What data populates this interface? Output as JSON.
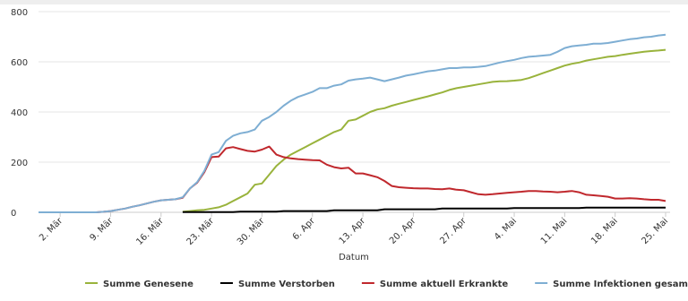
{
  "chart_data": {
    "type": "line",
    "x_label": "Datum",
    "categories": [
      null,
      null,
      null,
      "2. Mär",
      null,
      null,
      null,
      null,
      null,
      null,
      "9. Mär",
      null,
      null,
      null,
      null,
      null,
      null,
      "16. Mär",
      null,
      null,
      null,
      null,
      null,
      null,
      "23. Mär",
      null,
      null,
      null,
      null,
      null,
      null,
      "30. Mär",
      null,
      null,
      null,
      null,
      null,
      null,
      "6. Apr",
      null,
      null,
      null,
      null,
      null,
      null,
      "13. Apr",
      null,
      null,
      null,
      null,
      null,
      null,
      "20. Apr",
      null,
      null,
      null,
      null,
      null,
      null,
      "27. Apr",
      null,
      null,
      null,
      null,
      null,
      null,
      "4. Mai",
      null,
      null,
      null,
      null,
      null,
      null,
      "11. Mai",
      null,
      null,
      null,
      null,
      null,
      null,
      "18. Mai",
      null,
      null,
      null,
      null,
      null,
      null,
      "25. Mai"
    ],
    "ylim": [
      0,
      800
    ],
    "yticks": [
      0,
      200,
      400,
      600,
      800
    ],
    "grid": true,
    "series": [
      {
        "name": "Summe Genesene",
        "color": "#99b33c",
        "values": [
          null,
          null,
          null,
          null,
          null,
          null,
          null,
          null,
          null,
          null,
          null,
          null,
          null,
          null,
          null,
          null,
          null,
          null,
          null,
          null,
          2,
          5,
          8,
          10,
          15,
          20,
          30,
          45,
          60,
          75,
          110,
          115,
          150,
          185,
          210,
          230,
          245,
          260,
          275,
          290,
          305,
          320,
          330,
          365,
          370,
          385,
          400,
          410,
          415,
          425,
          433,
          440,
          448,
          455,
          462,
          470,
          478,
          488,
          495,
          500,
          505,
          510,
          515,
          520,
          522,
          523,
          525,
          528,
          535,
          545,
          555,
          565,
          575,
          585,
          592,
          597,
          605,
          610,
          615,
          620,
          623,
          628,
          632,
          636,
          640,
          643,
          645,
          648
        ]
      },
      {
        "name": "Summe Verstorben",
        "color": "#000000",
        "values": [
          null,
          null,
          null,
          null,
          null,
          null,
          null,
          null,
          null,
          null,
          null,
          null,
          null,
          null,
          null,
          null,
          null,
          null,
          null,
          null,
          1,
          1,
          1,
          1,
          1,
          1,
          1,
          1,
          3,
          3,
          3,
          3,
          3,
          3,
          5,
          5,
          5,
          5,
          5,
          5,
          5,
          8,
          8,
          8,
          8,
          8,
          8,
          8,
          12,
          12,
          12,
          12,
          12,
          12,
          12,
          12,
          15,
          15,
          15,
          15,
          15,
          15,
          15,
          15,
          15,
          15,
          17,
          17,
          17,
          17,
          17,
          17,
          17,
          17,
          17,
          17,
          19,
          19,
          19,
          19,
          19,
          19,
          19,
          19,
          19,
          19,
          19,
          19
        ]
      },
      {
        "name": "Summe aktuell Erkrankte",
        "color": "#c0282d",
        "values": [
          0,
          0,
          0,
          0,
          0,
          0,
          0,
          0,
          0,
          2,
          5,
          10,
          15,
          22,
          28,
          35,
          42,
          48,
          50,
          52,
          58,
          95,
          118,
          160,
          220,
          222,
          255,
          260,
          252,
          245,
          242,
          250,
          262,
          230,
          220,
          215,
          212,
          210,
          208,
          207,
          190,
          180,
          175,
          178,
          155,
          155,
          148,
          140,
          125,
          105,
          100,
          98,
          96,
          95,
          95,
          93,
          92,
          95,
          90,
          88,
          80,
          72,
          70,
          72,
          75,
          78,
          80,
          82,
          85,
          85,
          83,
          82,
          80,
          82,
          85,
          80,
          70,
          68,
          65,
          62,
          55,
          55,
          56,
          55,
          52,
          50,
          50,
          45
        ]
      },
      {
        "name": "Summe Infektionen gesamt",
        "color": "#7eaed3",
        "values": [
          0,
          0,
          0,
          0,
          0,
          0,
          0,
          0,
          0,
          2,
          5,
          10,
          15,
          22,
          28,
          35,
          42,
          48,
          50,
          52,
          60,
          95,
          120,
          165,
          230,
          240,
          285,
          305,
          315,
          320,
          330,
          365,
          380,
          400,
          425,
          445,
          460,
          470,
          480,
          495,
          495,
          505,
          510,
          525,
          530,
          533,
          537,
          530,
          523,
          530,
          537,
          545,
          550,
          556,
          562,
          565,
          570,
          575,
          575,
          578,
          578,
          580,
          583,
          590,
          597,
          603,
          608,
          615,
          620,
          622,
          625,
          628,
          640,
          655,
          662,
          665,
          668,
          672,
          672,
          675,
          680,
          685,
          690,
          693,
          698,
          700,
          705,
          708
        ]
      }
    ]
  }
}
